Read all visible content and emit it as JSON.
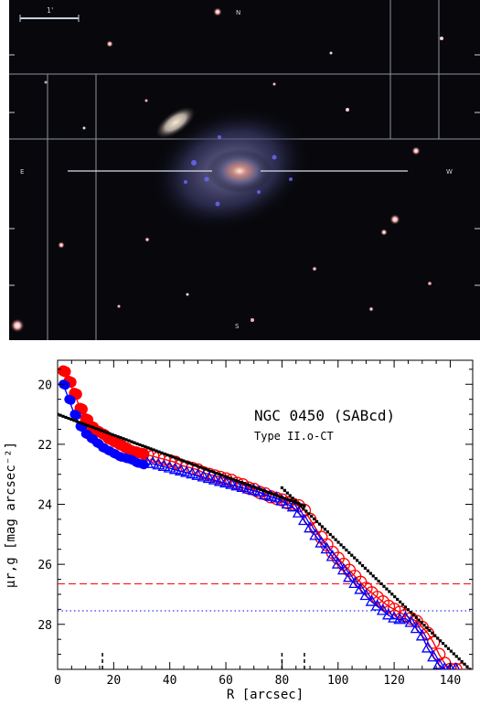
{
  "image_panel": {
    "labels": {
      "north": "N",
      "east": "E",
      "west": "W",
      "south": "S",
      "scale": "1'"
    }
  },
  "chart_data": {
    "type": "scatter",
    "title": "NGC 0450 (SABcd)",
    "subtitle": "Type II.o-CT",
    "xlabel": "R [arcsec]",
    "ylabel": "μr,g [mag arcsec⁻²]",
    "xlim": [
      0,
      148
    ],
    "ylim": [
      29.5,
      19.2
    ],
    "y_inverted": true,
    "xticks": [
      0,
      20,
      40,
      60,
      80,
      100,
      120,
      140
    ],
    "yticks": [
      20,
      22,
      24,
      26,
      28
    ],
    "grid": false,
    "colors": {
      "r": "#ff0000",
      "g": "#0000ff",
      "fit": "#000000",
      "sky_r": "#ff0000",
      "sky_g": "#0000ff"
    },
    "series": [
      {
        "name": "r",
        "marker": "circle",
        "x": [
          2,
          4,
          6,
          8,
          10,
          12,
          14,
          16,
          18,
          20,
          22,
          24,
          26,
          28,
          30,
          32,
          34,
          36,
          38,
          40,
          42,
          44,
          46,
          48,
          50,
          52,
          54,
          56,
          58,
          60,
          62,
          64,
          66,
          68,
          70,
          72,
          74,
          76,
          78,
          80,
          82,
          84,
          86,
          88,
          90,
          92,
          94,
          96,
          98,
          100,
          102,
          104,
          106,
          108,
          110,
          112,
          114,
          116,
          118,
          120,
          122,
          124,
          126,
          128,
          130,
          132,
          134,
          136,
          138,
          140,
          142,
          144
        ],
        "y": [
          19.55,
          19.9,
          20.3,
          20.8,
          21.15,
          21.4,
          21.55,
          21.65,
          21.8,
          21.9,
          22.0,
          22.1,
          22.2,
          22.25,
          22.3,
          22.35,
          22.4,
          22.45,
          22.5,
          22.55,
          22.6,
          22.7,
          22.75,
          22.8,
          22.85,
          22.95,
          23.0,
          23.05,
          23.1,
          23.15,
          23.2,
          23.3,
          23.35,
          23.45,
          23.5,
          23.6,
          23.65,
          23.75,
          23.8,
          23.85,
          23.95,
          24.0,
          24.05,
          24.2,
          24.5,
          24.8,
          25.1,
          25.35,
          25.6,
          25.8,
          26.0,
          26.2,
          26.4,
          26.6,
          26.8,
          26.95,
          27.1,
          27.25,
          27.4,
          27.5,
          27.6,
          27.7,
          27.8,
          27.9,
          28.1,
          28.3,
          28.6,
          29.0,
          29.3,
          29.5,
          29.5,
          29.5
        ]
      },
      {
        "name": "g",
        "marker": "triangle",
        "x": [
          2,
          4,
          6,
          8,
          10,
          12,
          14,
          16,
          18,
          20,
          22,
          24,
          26,
          28,
          30,
          32,
          34,
          36,
          38,
          40,
          42,
          44,
          46,
          48,
          50,
          52,
          54,
          56,
          58,
          60,
          62,
          64,
          66,
          68,
          70,
          72,
          74,
          76,
          78,
          80,
          82,
          84,
          86,
          88,
          90,
          92,
          94,
          96,
          98,
          100,
          102,
          104,
          106,
          108,
          110,
          112,
          114,
          116,
          118,
          120,
          122,
          124,
          126,
          128,
          130,
          132,
          134,
          136,
          138,
          140,
          142
        ],
        "y": [
          20.0,
          20.5,
          21.0,
          21.4,
          21.65,
          21.8,
          21.95,
          22.1,
          22.2,
          22.3,
          22.4,
          22.45,
          22.5,
          22.6,
          22.65,
          22.65,
          22.65,
          22.7,
          22.75,
          22.8,
          22.85,
          22.9,
          22.95,
          23.0,
          23.05,
          23.1,
          23.15,
          23.2,
          23.25,
          23.3,
          23.35,
          23.4,
          23.45,
          23.5,
          23.55,
          23.6,
          23.7,
          23.75,
          23.8,
          23.9,
          24.0,
          24.1,
          24.3,
          24.55,
          24.8,
          25.05,
          25.3,
          25.5,
          25.75,
          26.0,
          26.2,
          26.45,
          26.65,
          26.85,
          27.05,
          27.25,
          27.4,
          27.55,
          27.7,
          27.8,
          27.85,
          27.8,
          27.95,
          28.15,
          28.4,
          28.8,
          29.1,
          29.35,
          29.5,
          29.5,
          29.5
        ]
      }
    ],
    "fits": [
      {
        "name": "inner",
        "x": [
          0,
          88
        ],
        "y": [
          21.0,
          24.05
        ]
      },
      {
        "name": "outer",
        "x": [
          80,
          147
        ],
        "y": [
          23.45,
          29.5
        ]
      }
    ],
    "hlines": [
      {
        "name": "sky_r",
        "y": 26.65,
        "style": "dashed"
      },
      {
        "name": "sky_g",
        "y": 27.55,
        "style": "dotted"
      }
    ],
    "vmarkers": [
      16,
      80,
      88
    ]
  }
}
